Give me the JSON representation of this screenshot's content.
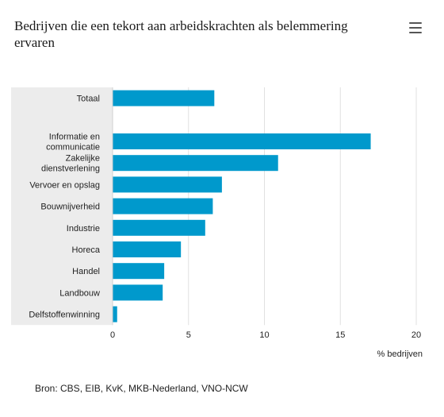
{
  "chart_data": {
    "type": "bar",
    "orientation": "horizontal",
    "title": "Bedrijven die een tekort aan arbeidskrachten als belemmering ervaren",
    "xlabel": "% bedrijven",
    "xlim": [
      0,
      20
    ],
    "xticks": [
      0,
      5,
      10,
      15,
      20
    ],
    "categories": [
      "Totaal",
      "",
      "Informatie en communicatie",
      "Zakelijke dienstverlening",
      "Vervoer en opslag",
      "Bouwnijverheid",
      "Industrie",
      "Horeca",
      "Handel",
      "Landbouw",
      "Delfstoffenwinning"
    ],
    "category_lines": [
      [
        "Totaal"
      ],
      [],
      [
        "Informatie en",
        "communicatie"
      ],
      [
        "Zakelijke",
        "dienstverlening"
      ],
      [
        "Vervoer en opslag"
      ],
      [
        "Bouwnijverheid"
      ],
      [
        "Industrie"
      ],
      [
        "Horeca"
      ],
      [
        "Handel"
      ],
      [
        "Landbouw"
      ],
      [
        "Delfstoffenwinning"
      ]
    ],
    "values": [
      6.7,
      null,
      17.0,
      10.9,
      7.2,
      6.6,
      6.1,
      4.5,
      3.4,
      3.3,
      0.3
    ],
    "bar_color": "#0099cc",
    "gridlines": true
  },
  "source": "Bron: CBS, EIB, KvK, MKB-Nederland, VNO-NCW",
  "menu": {
    "icon": "hamburger-menu-icon"
  }
}
